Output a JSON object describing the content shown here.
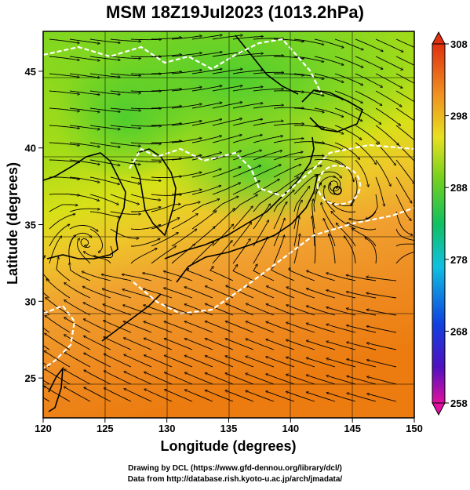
{
  "title": "MSM 18Z19Jul2023 (1013.2hPa)",
  "x_axis": {
    "label": "Longitude (degrees)",
    "ticks": [
      "120",
      "125",
      "130",
      "135",
      "140",
      "145",
      "150"
    ]
  },
  "y_axis": {
    "label": "Latitude  (degrees)",
    "ticks": [
      "25",
      "30",
      "35",
      "40",
      "45"
    ]
  },
  "colorbar": {
    "ticks": [
      "308",
      "298",
      "288",
      "278",
      "268",
      "258"
    ],
    "min": 258,
    "max": 308
  },
  "credits": {
    "line1": "Drawing by DCL (https://www.gfd-dennou.org/library/dcl/)",
    "line2": "Data from http://database.rish.kyoto-u.ac.jp/arch/jmadata/"
  },
  "map": {
    "lon_range": [
      120,
      150
    ],
    "lat_range": [
      22.4,
      47.6
    ],
    "features": [
      "temperature-shading",
      "streamlines",
      "coastlines",
      "freezing-contour"
    ],
    "cyclone": {
      "lon": 143.5,
      "lat": 37.8
    },
    "colors": {
      "warm": "#f07c0c",
      "mid": "#f0e020",
      "cool": "#40d040",
      "contour": "#ffffff"
    }
  }
}
